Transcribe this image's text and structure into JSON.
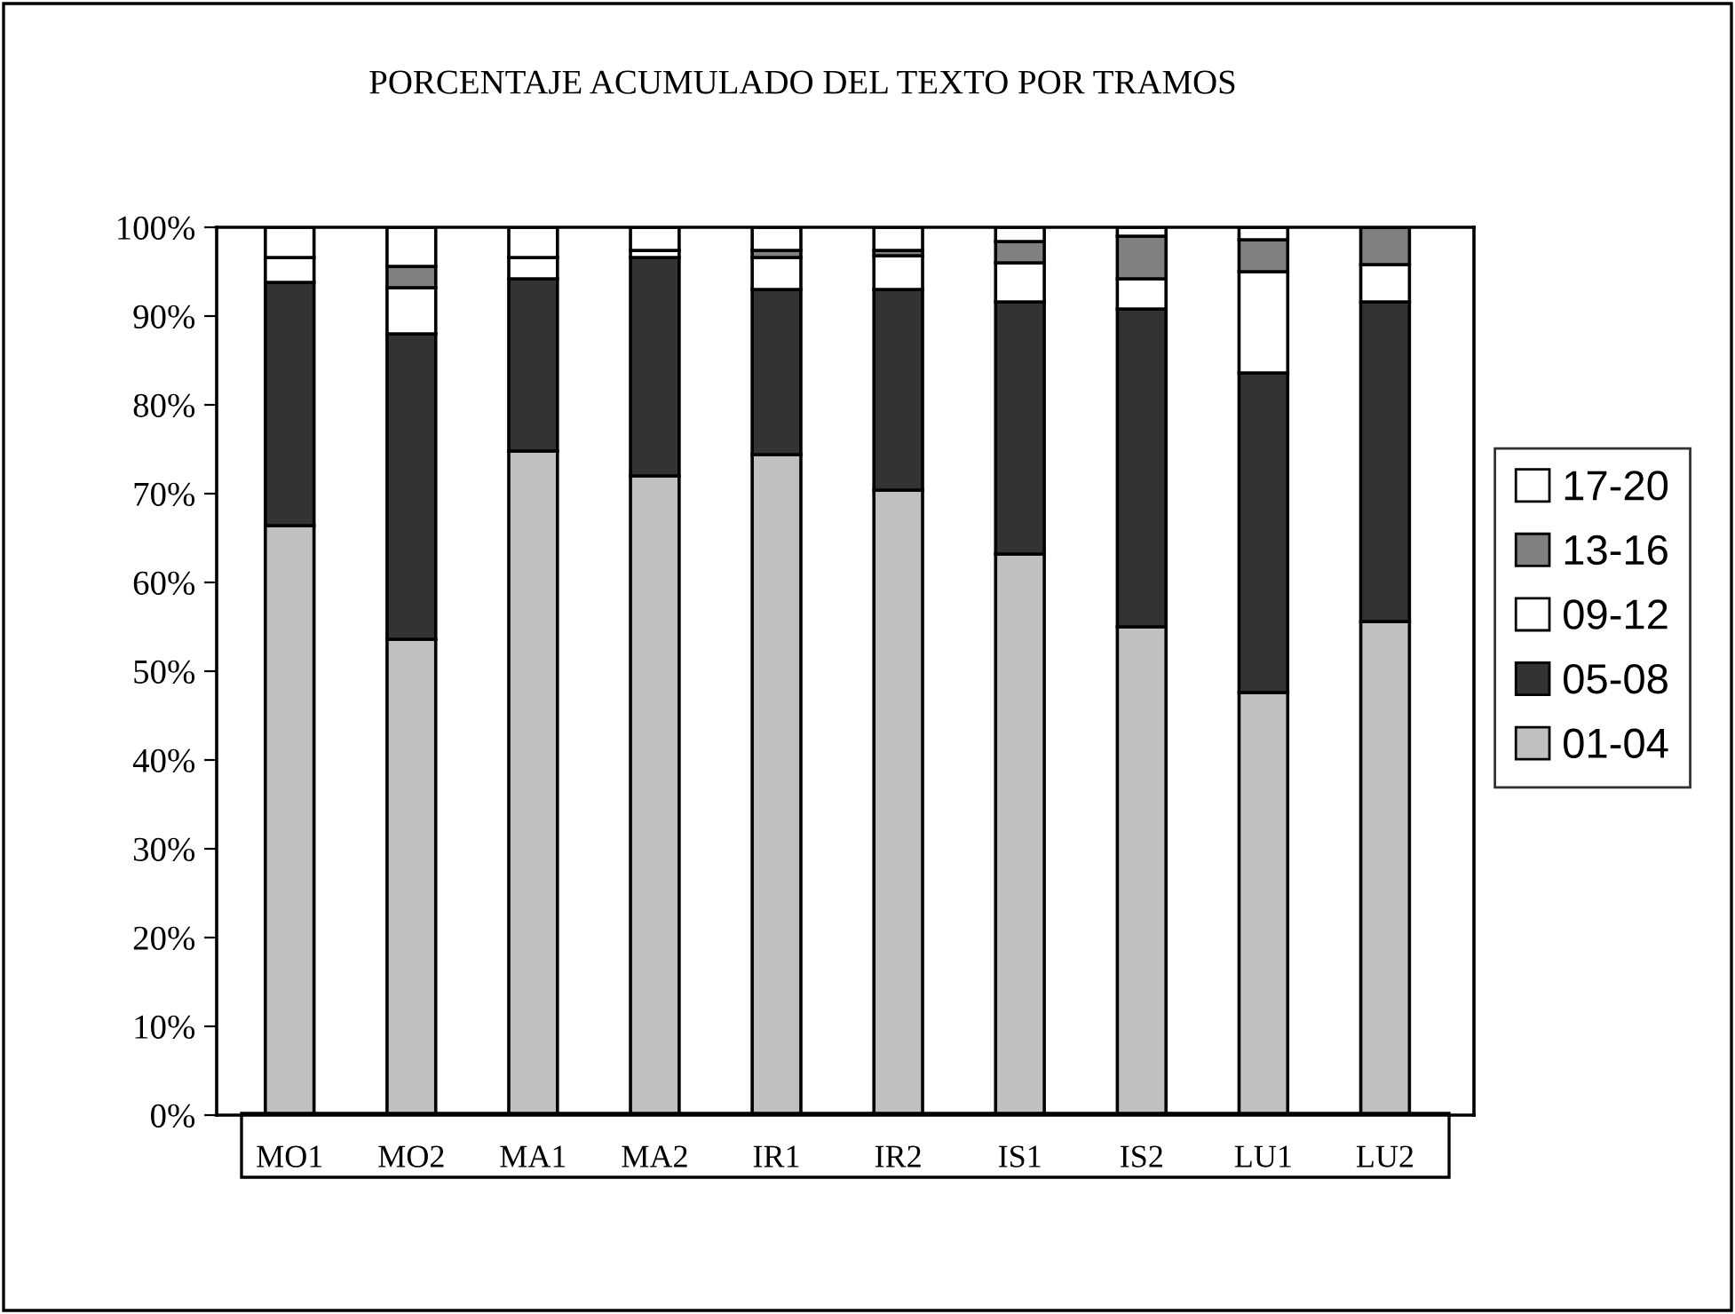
{
  "chart_data": {
    "type": "bar",
    "stacked": true,
    "title": "PORCENTAJE ACUMULADO DEL TEXTO POR TRAMOS",
    "categories": [
      "MO1",
      "MO2",
      "MA1",
      "MA2",
      "IR1",
      "IR2",
      "IS1",
      "IS2",
      "LU1",
      "LU2"
    ],
    "series": [
      {
        "name": "01-04",
        "color": "#c0c0c0",
        "values": [
          66.4,
          53.6,
          74.8,
          72.0,
          74.4,
          70.4,
          63.2,
          55.0,
          47.6,
          55.6
        ]
      },
      {
        "name": "05-08",
        "color": "#333333",
        "values": [
          27.4,
          34.4,
          19.4,
          24.6,
          18.6,
          22.6,
          28.4,
          35.8,
          36.0,
          36.0
        ]
      },
      {
        "name": "09-12",
        "color": "#ffffff",
        "values": [
          2.8,
          5.2,
          2.4,
          0.8,
          3.6,
          3.8,
          4.4,
          3.4,
          11.4,
          4.2
        ]
      },
      {
        "name": "13-16",
        "color": "#808080",
        "values": [
          0,
          2.4,
          0,
          0,
          0.8,
          0.6,
          2.4,
          4.8,
          3.6,
          4.2
        ]
      },
      {
        "name": "17-20",
        "color": "#ffffff",
        "values": [
          3.4,
          4.4,
          3.4,
          2.6,
          2.6,
          2.6,
          1.6,
          1.0,
          1.4,
          0
        ]
      }
    ],
    "ylim": [
      0,
      100
    ],
    "yticks": [
      {
        "value": 0,
        "label": "0%"
      },
      {
        "value": 10,
        "label": "10%"
      },
      {
        "value": 20,
        "label": "20%"
      },
      {
        "value": 30,
        "label": "30%"
      },
      {
        "value": 40,
        "label": "40%"
      },
      {
        "value": 50,
        "label": "50%"
      },
      {
        "value": 60,
        "label": "60%"
      },
      {
        "value": 70,
        "label": "70%"
      },
      {
        "value": 80,
        "label": "80%"
      },
      {
        "value": 90,
        "label": "90%"
      },
      {
        "value": 100,
        "label": "100%"
      }
    ],
    "grid": false,
    "legend": "right"
  }
}
